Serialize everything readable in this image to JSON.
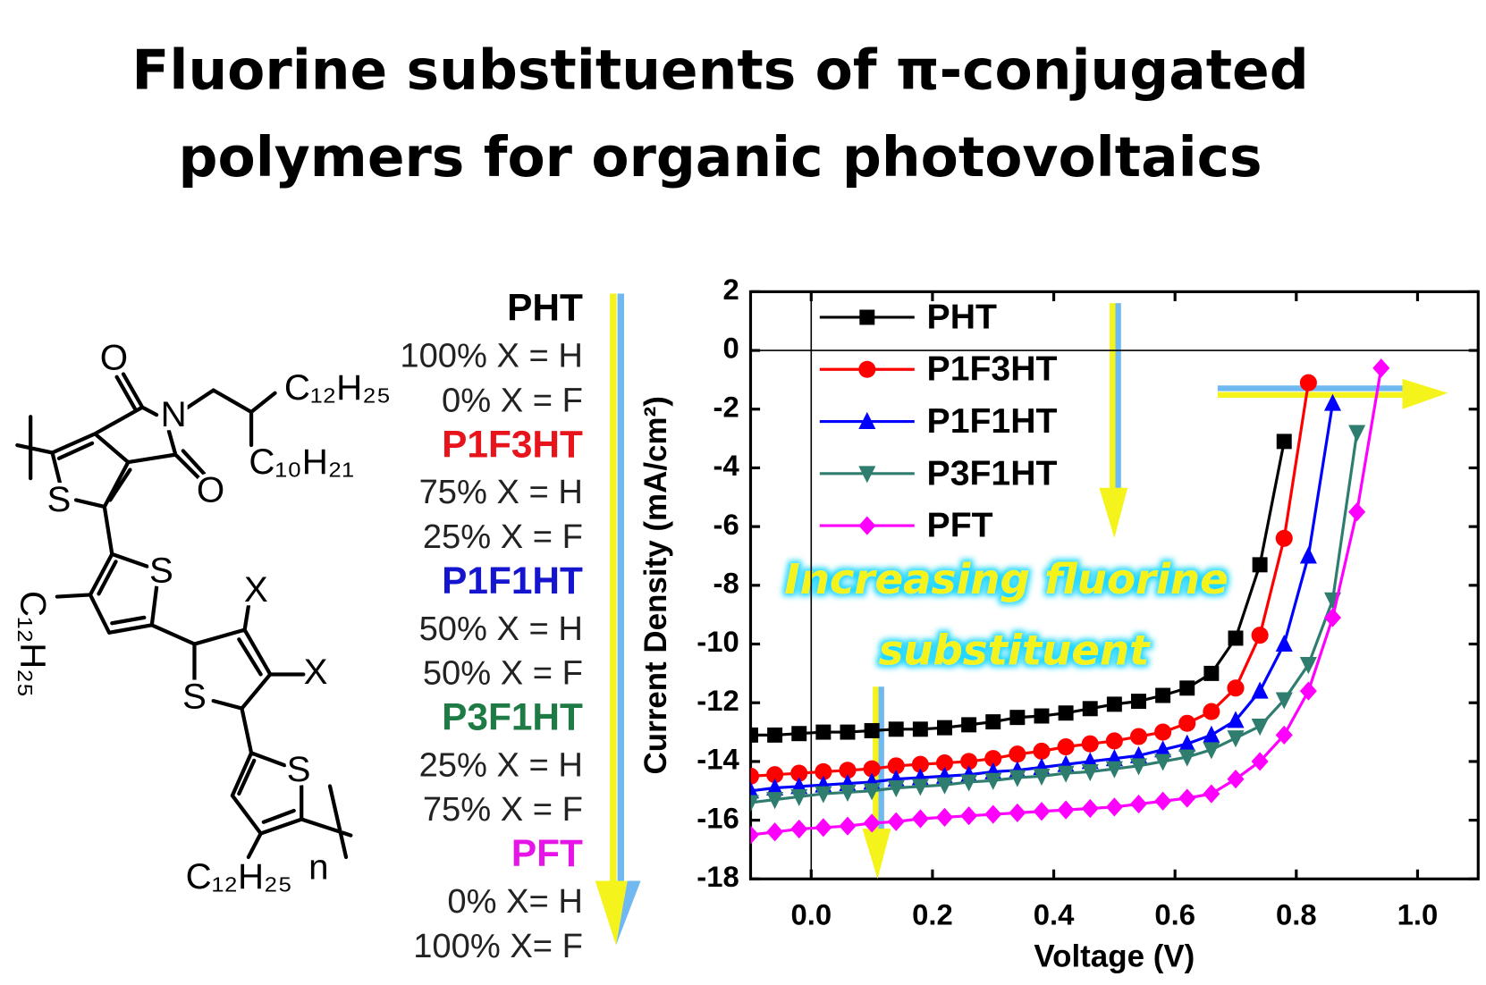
{
  "title": {
    "lines": [
      "Fluorine substituents of π-conjugated",
      "polymers  for organic photovoltaics"
    ]
  },
  "structure": {
    "labels": [
      "O",
      "N",
      "O",
      "S",
      "C₁₂H₂₅",
      "C₁₀H₂₁",
      "S",
      "C₁₂H₂₅",
      "X",
      "X",
      "S",
      "S",
      "C₁₂H₂₅",
      "n"
    ]
  },
  "compositions": [
    {
      "name": "PHT",
      "color": "#000000",
      "lines": [
        "100% X = H",
        "0% X = F"
      ]
    },
    {
      "name": "P1F3HT",
      "color": "#e8141c",
      "lines": [
        "75% X = H",
        "25% X = F"
      ]
    },
    {
      "name": "P1F1HT",
      "color": "#1515d0",
      "lines": [
        "50% X = H",
        "50% X = F"
      ]
    },
    {
      "name": "P3F1HT",
      "color": "#1e7b45",
      "lines": [
        "25% X = H",
        "75% X = F"
      ]
    },
    {
      "name": "PFT",
      "color": "#e614e6",
      "lines": [
        "0% X= H",
        "100% X= F"
      ]
    }
  ],
  "chart_data": {
    "type": "line",
    "xlabel": "Voltage (V)",
    "ylabel": "Current Density (mA/cm²)",
    "annotation": [
      "Increasing fluorine",
      "substituent"
    ],
    "xlim": [
      -0.1,
      1.1
    ],
    "ylim": [
      -18,
      2
    ],
    "xticks": [
      {
        "value": 0,
        "label": "0.0"
      },
      0.2,
      0.4,
      0.6,
      0.8,
      {
        "value": 1,
        "label": "1.0"
      }
    ],
    "yticks": [
      -18,
      -16,
      -14,
      -12,
      -10,
      -8,
      -6,
      -4,
      -2,
      0,
      2
    ],
    "legend": "upper left",
    "x": [
      -0.1,
      -0.06,
      -0.02,
      0.02,
      0.06,
      0.1,
      0.14,
      0.18,
      0.22,
      0.26,
      0.3,
      0.34,
      0.38,
      0.42,
      0.46,
      0.5,
      0.54,
      0.58,
      0.62,
      0.66,
      0.7,
      0.74,
      0.78,
      0.82,
      0.86,
      0.9,
      0.94
    ],
    "series": [
      {
        "name": "PHT",
        "color": "#000000",
        "marker": "square",
        "values": [
          -13.1,
          -13.1,
          -13.05,
          -13.0,
          -13.0,
          -12.95,
          -12.9,
          -12.9,
          -12.85,
          -12.75,
          -12.65,
          -12.5,
          -12.45,
          -12.35,
          -12.2,
          -12.05,
          -11.95,
          -11.75,
          -11.5,
          -11.0,
          -9.8,
          -7.3,
          -3.1,
          null,
          null,
          null,
          null
        ]
      },
      {
        "name": "P1F3HT",
        "color": "#ff0000",
        "marker": "circle",
        "values": [
          -14.5,
          -14.45,
          -14.4,
          -14.35,
          -14.3,
          -14.25,
          -14.15,
          -14.1,
          -14.05,
          -14.0,
          -13.9,
          -13.75,
          -13.65,
          -13.5,
          -13.4,
          -13.3,
          -13.15,
          -13.0,
          -12.7,
          -12.3,
          -11.5,
          -9.7,
          -6.4,
          -1.1,
          null,
          null,
          null
        ]
      },
      {
        "name": "P1F1HT",
        "color": "#0000ff",
        "marker": "triangle-up",
        "values": [
          -15.0,
          -14.9,
          -14.85,
          -14.8,
          -14.75,
          -14.7,
          -14.6,
          -14.55,
          -14.5,
          -14.45,
          -14.35,
          -14.3,
          -14.2,
          -14.1,
          -14.0,
          -13.9,
          -13.8,
          -13.6,
          -13.4,
          -13.1,
          -12.6,
          -11.6,
          -10.0,
          -7.0,
          -1.8,
          null,
          null
        ]
      },
      {
        "name": "P3F1HT",
        "color": "#2e7d6e",
        "marker": "triangle-down",
        "values": [
          -15.4,
          -15.3,
          -15.2,
          -15.1,
          -15.05,
          -15.0,
          -14.9,
          -14.85,
          -14.8,
          -14.7,
          -14.65,
          -14.55,
          -14.5,
          -14.4,
          -14.35,
          -14.25,
          -14.15,
          -14.0,
          -13.85,
          -13.6,
          -13.2,
          -12.8,
          -11.9,
          -10.7,
          -8.5,
          -2.8,
          null
        ]
      },
      {
        "name": "PFT",
        "color": "#ff00ff",
        "marker": "diamond",
        "values": [
          -16.5,
          -16.4,
          -16.3,
          -16.25,
          -16.2,
          -16.1,
          -16.05,
          -15.95,
          -15.9,
          -15.85,
          -15.8,
          -15.75,
          -15.7,
          -15.65,
          -15.6,
          -15.55,
          -15.45,
          -15.35,
          -15.25,
          -15.1,
          -14.6,
          -14.0,
          -13.1,
          -11.6,
          -9.1,
          -5.5,
          -0.6
        ]
      }
    ]
  }
}
